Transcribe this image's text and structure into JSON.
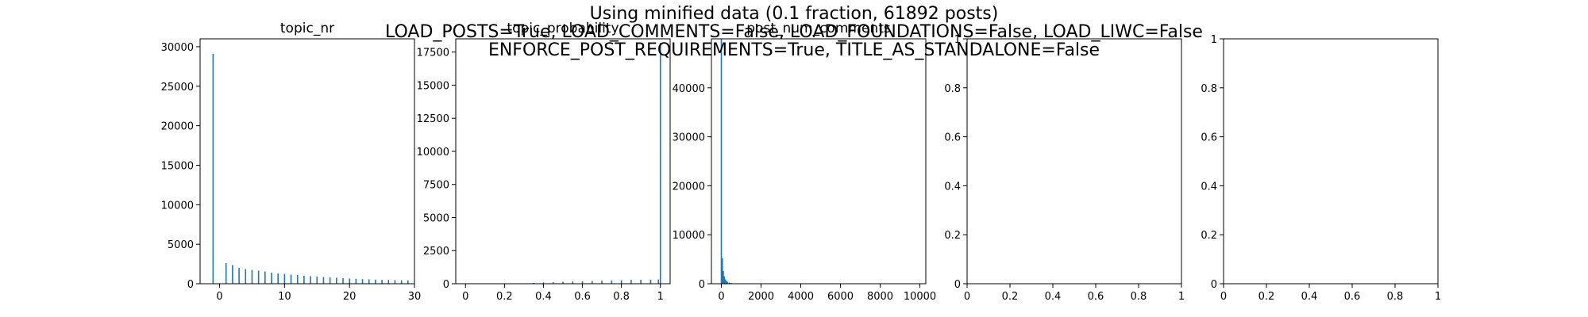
{
  "figure": {
    "suptitle": [
      "Using minified data (0.1 fraction, 61892 posts)",
      "LOAD_POSTS=True, LOAD_COMMENTS=False, LOAD_FOUNDATIONS=False, LOAD_LIWC=False",
      "ENFORCE_POST_REQUIREMENTS=True, TITLE_AS_STANDALONE=False"
    ],
    "bar_color": "#1f77b4"
  },
  "chart_data": [
    {
      "type": "bar",
      "title": "topic_nr",
      "xlim": [
        -3,
        30
      ],
      "ylim": [
        0,
        31000
      ],
      "x_ticks": [
        0,
        10,
        20,
        30
      ],
      "y_ticks": [
        0,
        5000,
        10000,
        15000,
        20000,
        25000,
        30000
      ],
      "x": [
        -1,
        1,
        2,
        3,
        4,
        5,
        6,
        7,
        8,
        9,
        10,
        11,
        12,
        13,
        14,
        15,
        16,
        17,
        18,
        19,
        20,
        21,
        22,
        23,
        24,
        25,
        26,
        27,
        28,
        29
      ],
      "values": [
        29100,
        2600,
        2350,
        2000,
        1850,
        1750,
        1650,
        1550,
        1400,
        1300,
        1250,
        1150,
        1100,
        1000,
        950,
        900,
        850,
        800,
        750,
        700,
        650,
        620,
        580,
        550,
        520,
        500,
        480,
        460,
        440,
        420
      ]
    },
    {
      "type": "bar",
      "title": "topic_probability",
      "xlim": [
        -0.05,
        1.05
      ],
      "ylim": [
        0,
        18500
      ],
      "x_ticks": [
        0.0,
        0.2,
        0.4,
        0.6,
        0.8,
        1.0
      ],
      "y_ticks": [
        0,
        2500,
        5000,
        7500,
        10000,
        12500,
        15000,
        17500
      ],
      "x": [
        0.3,
        0.35,
        0.4,
        0.45,
        0.5,
        0.55,
        0.6,
        0.65,
        0.7,
        0.75,
        0.8,
        0.85,
        0.9,
        0.95,
        0.99,
        1.0
      ],
      "values": [
        30,
        60,
        100,
        130,
        150,
        170,
        190,
        210,
        230,
        250,
        270,
        290,
        300,
        310,
        320,
        18200
      ]
    },
    {
      "type": "bar",
      "title": "post_num_comments",
      "xlim": [
        -500,
        10300
      ],
      "ylim": [
        0,
        50000
      ],
      "x_ticks": [
        0,
        2000,
        4000,
        6000,
        8000,
        10000
      ],
      "y_ticks": [
        0,
        10000,
        20000,
        30000,
        40000
      ],
      "x": [
        0,
        50,
        100,
        150,
        200,
        250,
        300,
        400,
        500,
        700,
        1000
      ],
      "values": [
        50000,
        5200,
        2600,
        1500,
        900,
        600,
        400,
        250,
        150,
        80,
        40
      ]
    },
    {
      "type": "bar",
      "title": "",
      "xlim": [
        0,
        1
      ],
      "ylim": [
        0,
        1
      ],
      "x_ticks": [
        0.0,
        0.2,
        0.4,
        0.6,
        0.8,
        1.0
      ],
      "y_ticks": [
        0.0,
        0.2,
        0.4,
        0.6,
        0.8,
        1.0
      ],
      "x": [],
      "values": []
    },
    {
      "type": "bar",
      "title": "",
      "xlim": [
        0,
        1
      ],
      "ylim": [
        0,
        1
      ],
      "x_ticks": [
        0.0,
        0.2,
        0.4,
        0.6,
        0.8,
        1.0
      ],
      "y_ticks": [
        0.0,
        0.2,
        0.4,
        0.6,
        0.8,
        1.0
      ],
      "x": [],
      "values": []
    }
  ]
}
